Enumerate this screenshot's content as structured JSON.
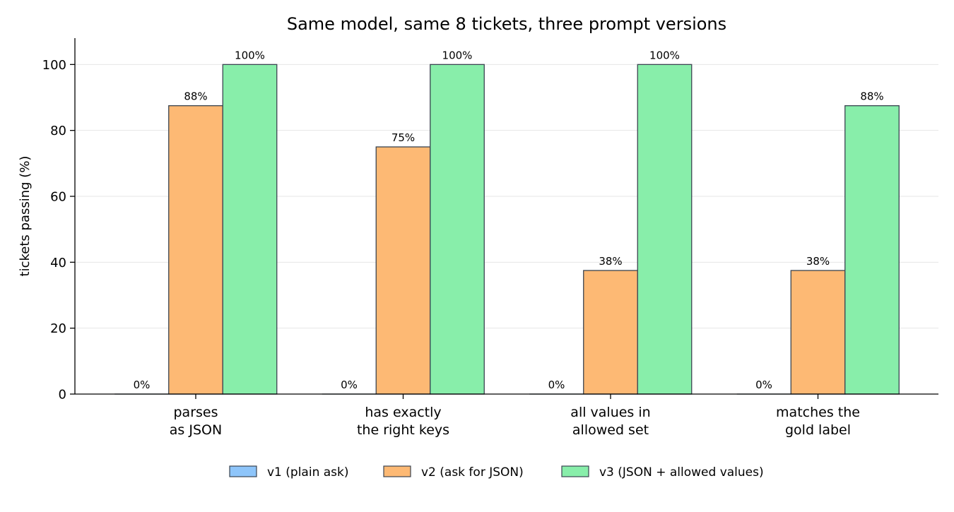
{
  "chart_data": {
    "type": "bar",
    "title": "Same model, same 8 tickets, three prompt versions",
    "xlabel": "",
    "ylabel": "tickets passing (%)",
    "ylim": [
      0,
      108
    ],
    "yticks": [
      0,
      20,
      40,
      60,
      80,
      100
    ],
    "grid": true,
    "legend_position": "bottom-center",
    "categories": [
      [
        "parses",
        "as JSON"
      ],
      [
        "has exactly",
        "the right keys"
      ],
      [
        "all values in",
        "allowed set"
      ],
      [
        "matches the",
        "gold label"
      ]
    ],
    "series": [
      {
        "name": "v1 (plain ask)",
        "color": "#8ec5fa",
        "values": [
          0,
          0,
          0,
          0
        ],
        "labels": [
          "0%",
          "0%",
          "0%",
          "0%"
        ]
      },
      {
        "name": "v2 (ask for JSON)",
        "color": "#fdb974",
        "values": [
          87.5,
          75,
          37.5,
          37.5
        ],
        "labels": [
          "88%",
          "75%",
          "38%",
          "38%"
        ]
      },
      {
        "name": "v3 (JSON + allowed values)",
        "color": "#88eeaa",
        "values": [
          100,
          100,
          100,
          87.5
        ],
        "labels": [
          "100%",
          "100%",
          "100%",
          "88%"
        ]
      }
    ],
    "edge_color": "#3a4450",
    "grid_color": "#e6e6e6"
  }
}
